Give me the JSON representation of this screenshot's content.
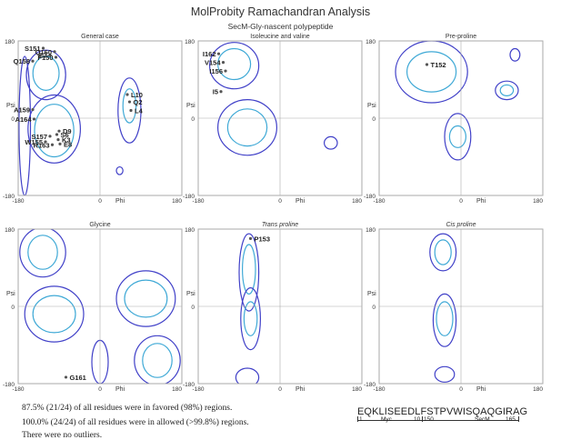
{
  "title": "MolProbity Ramachandran Analysis",
  "subtitle": "SecM-Gly-nascent polypeptide",
  "colors": {
    "favored": "#3fa9d6",
    "allowed": "#4040c8",
    "point": "#555555",
    "frame": "#aaaaaa"
  },
  "chart_data": [
    {
      "type": "scatter",
      "title": "General case",
      "xlabel": "Phi",
      "ylabel": "Psi",
      "xlim": [
        -180,
        180
      ],
      "ylim": [
        -180,
        180
      ],
      "x_tick_labels": [
        "-180",
        "0",
        "180"
      ],
      "y_tick_labels": [
        "180",
        "0",
        "-180"
      ],
      "points": [
        {
          "label": "S151",
          "phi": -125,
          "psi": 163
        },
        {
          "label": "E7",
          "phi": -110,
          "psi": 147
        },
        {
          "label": "Q160",
          "phi": -100,
          "psi": 155
        },
        {
          "label": "F150",
          "phi": -97,
          "psi": 142
        },
        {
          "label": "Q158",
          "phi": -148,
          "psi": 133
        },
        {
          "label": "L10",
          "phi": 60,
          "psi": 55
        },
        {
          "label": "Q2",
          "phi": 65,
          "psi": 38
        },
        {
          "label": "L4",
          "phi": 68,
          "psi": 18
        },
        {
          "label": "A159",
          "phi": -148,
          "psi": 20
        },
        {
          "label": "A164",
          "phi": -145,
          "psi": -2
        },
        {
          "label": "D9",
          "phi": -90,
          "psi": -30
        },
        {
          "label": "S6",
          "phi": -95,
          "psi": -38
        },
        {
          "label": "S157",
          "phi": -110,
          "psi": -42
        },
        {
          "label": "K3",
          "phi": -92,
          "psi": -50
        },
        {
          "label": "E8",
          "phi": -88,
          "psi": -60
        },
        {
          "label": "W155",
          "phi": -120,
          "psi": -55
        },
        {
          "label": "R163",
          "phi": -105,
          "psi": -62
        }
      ]
    },
    {
      "type": "scatter",
      "title": "Isoleucine and valine",
      "xlabel": "Phi",
      "ylabel": "Psi",
      "xlim": [
        -180,
        180
      ],
      "ylim": [
        -180,
        180
      ],
      "x_tick_labels": [
        "-180",
        "0",
        "180"
      ],
      "y_tick_labels": [
        "180",
        "0",
        "-180"
      ],
      "points": [
        {
          "label": "I162",
          "phi": -135,
          "psi": 150
        },
        {
          "label": "V154",
          "phi": -125,
          "psi": 130
        },
        {
          "label": "I156",
          "phi": -120,
          "psi": 110
        },
        {
          "label": "I5",
          "phi": -130,
          "psi": 62
        }
      ]
    },
    {
      "type": "scatter",
      "title": "Pre-proline",
      "xlabel": "Phi",
      "ylabel": "Psi",
      "xlim": [
        -180,
        180
      ],
      "ylim": [
        -180,
        180
      ],
      "x_tick_labels": [
        "-180",
        "0",
        "180"
      ],
      "y_tick_labels": [
        "180",
        "0",
        "-180"
      ],
      "points": [
        {
          "label": "T152",
          "phi": -75,
          "psi": 125
        }
      ]
    },
    {
      "type": "scatter",
      "title": "Glycine",
      "xlabel": "Phi",
      "ylabel": "Psi",
      "xlim": [
        -180,
        180
      ],
      "ylim": [
        -180,
        180
      ],
      "x_tick_labels": [
        "-180",
        "0",
        "180"
      ],
      "y_tick_labels": [
        "180",
        "0",
        "-180"
      ],
      "points": [
        {
          "label": "G161",
          "phi": -75,
          "psi": -165
        }
      ]
    },
    {
      "type": "scatter",
      "title": "Trans proline",
      "xlabel": "Phi",
      "ylabel": "Psi",
      "xlim": [
        -180,
        180
      ],
      "ylim": [
        -180,
        180
      ],
      "x_tick_labels": [
        "-180",
        "0",
        "180"
      ],
      "y_tick_labels": [
        "180",
        "0",
        "-180"
      ],
      "points": [
        {
          "label": "P153",
          "phi": -65,
          "psi": 158
        }
      ]
    },
    {
      "type": "scatter",
      "title": "Cis proline",
      "xlabel": "Phi",
      "ylabel": "Psi",
      "xlim": [
        -180,
        180
      ],
      "ylim": [
        -180,
        180
      ],
      "x_tick_labels": [
        "-180",
        "0",
        "180"
      ],
      "y_tick_labels": [
        "180",
        "0",
        "-180"
      ],
      "points": []
    }
  ],
  "stats": [
    "87.5% (21/24) of all residues were in favored (98%) regions.",
    "100.0% (24/24) of all residues were in allowed (>99.8%) regions.",
    "There were no outliers."
  ],
  "sequence": {
    "text": "EQKLISEEDLFSTPVWISQAQGIRAG",
    "myc_label": "Myc",
    "secm_label": "SecM",
    "numbers": {
      "n1": "1",
      "n10": "10",
      "n150": "150",
      "n165": "165"
    }
  }
}
